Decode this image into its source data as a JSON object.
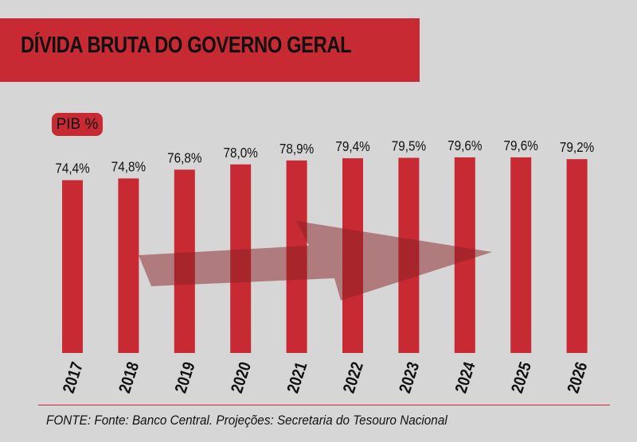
{
  "title": "DÍVIDA BRUTA DO GOVERNO GERAL",
  "unit_badge": "PIB %",
  "source_line": "FONTE:  Fonte: Banco Central. Projeções: Secretaria do Tesouro Nacional",
  "colors": {
    "accent": "#c72a32",
    "background": "#d6d6d6",
    "text": "#111111",
    "trend_arrow": "#8a1f24"
  },
  "chart_data": {
    "type": "bar",
    "title": "DÍVIDA BRUTA DO GOVERNO GERAL",
    "ylabel": "PIB %",
    "xlabel": "",
    "categories": [
      "2017",
      "2018",
      "2019",
      "2020",
      "2021",
      "2022",
      "2023",
      "2024",
      "2025",
      "2026"
    ],
    "values": [
      74.4,
      74.8,
      76.8,
      78.0,
      78.9,
      79.4,
      79.5,
      79.6,
      79.6,
      79.2
    ],
    "value_labels": [
      "74,4%",
      "74,8%",
      "76,8%",
      "78,0%",
      "78,9%",
      "79,4%",
      "79,5%",
      "79,6%",
      "79,6%",
      "79,2%"
    ],
    "ylim": [
      35,
      80.5
    ],
    "grid": false,
    "legend": "none",
    "annotations": [
      "upward trend arrow"
    ]
  }
}
